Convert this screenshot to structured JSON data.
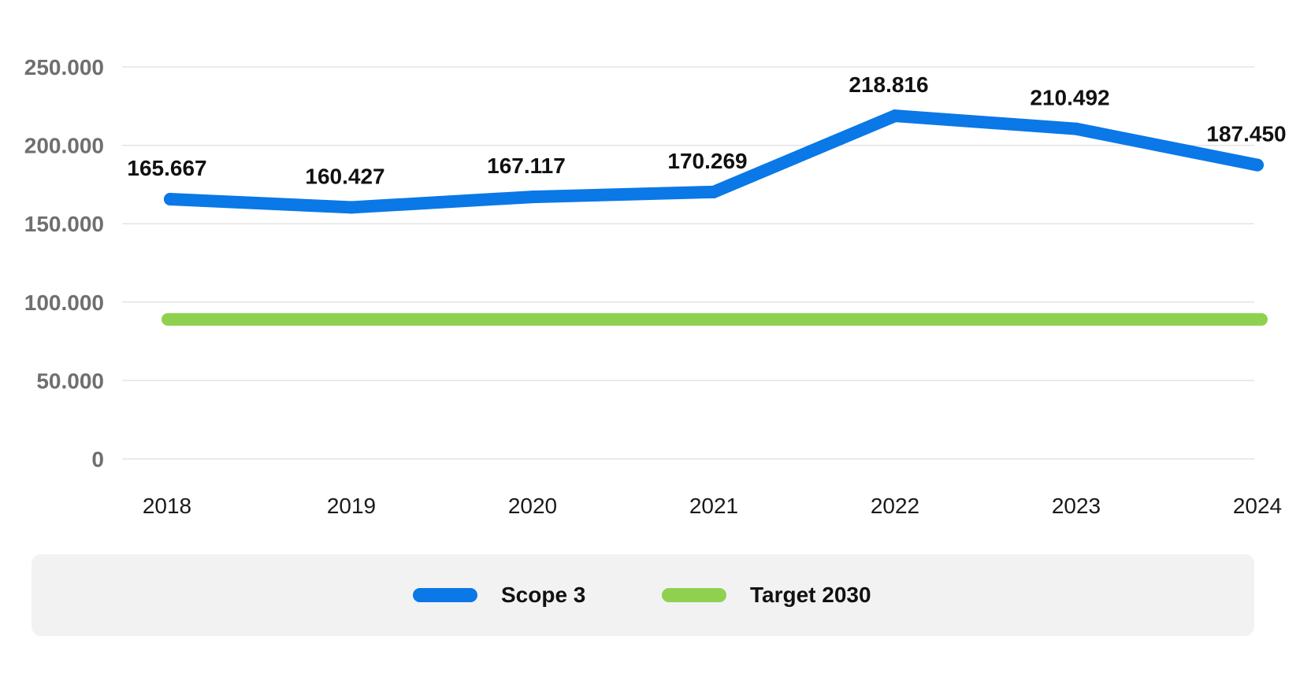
{
  "chart_data": {
    "type": "line",
    "categories": [
      "2018",
      "2019",
      "2020",
      "2021",
      "2022",
      "2023",
      "2024"
    ],
    "series": [
      {
        "name": "Scope 3",
        "values": [
          165667,
          160427,
          167117,
          170269,
          218816,
          210492,
          187450
        ],
        "labels": [
          "165.667",
          "160.427",
          "167.117",
          "170.269",
          "218.816",
          "210.492",
          "187.450"
        ],
        "color": "#0a78e6"
      },
      {
        "name": "Target 2030",
        "values": [
          89000,
          89000,
          89000,
          89000,
          89000,
          89000,
          89000
        ],
        "color": "#8fd14f"
      }
    ],
    "yticks": [
      0,
      50000,
      100000,
      150000,
      200000,
      250000
    ],
    "ytick_labels": [
      "0",
      "50.000",
      "100.000",
      "150.000",
      "200.000",
      "250.000"
    ],
    "ylim": [
      0,
      250000
    ],
    "grid": true,
    "legend_position": "bottom"
  }
}
